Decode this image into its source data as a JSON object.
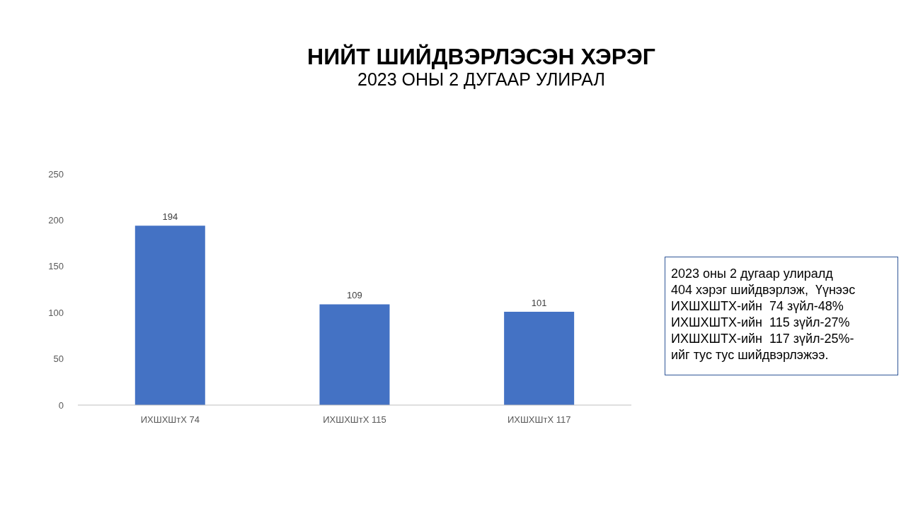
{
  "chart_data": {
    "type": "bar",
    "title": "НИЙТ ШИЙДВЭРЛЭСЭН ХЭРЭГ",
    "subtitle": "2023 ОНЫ 2 ДУГААР УЛИРАЛ",
    "categories": [
      "ИХШХШтХ 74",
      "ИХШХШтХ 115",
      "ИХШХШтХ 117"
    ],
    "values": [
      194,
      109,
      101
    ],
    "color": "#4472c4",
    "ylim": [
      0,
      250
    ],
    "yticks": [
      0,
      50,
      100,
      150,
      200,
      250
    ],
    "grid": false,
    "data_labels": true,
    "annotations": [
      "2023 оны 2 дугаар улиралд\n404 хэрэг шийдвэрлэж,  Үүнээс\nИХШХШТХ-ийн  74 зүйл-48%\nИХШХШТХ-ийн  115 зүйл-27%\nИХШХШТХ-ийн  117 зүйл-25%-\nийг тус тус шийдвэрлэжээ."
    ]
  }
}
